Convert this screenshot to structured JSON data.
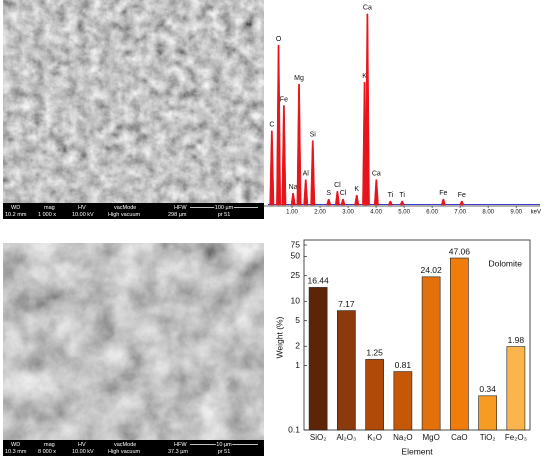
{
  "sem_images": [
    {
      "header": [
        "WD",
        "mag",
        "HV",
        "vacMode",
        "HFW"
      ],
      "info": [
        "10.2 mm",
        "1 000 x",
        "10.00 kV",
        "High vacuum",
        "298 µm"
      ],
      "scale": "100 µm",
      "id": "pr 51"
    },
    {
      "header": [
        "WD",
        "mag",
        "HV",
        "vacMode",
        "HFW"
      ],
      "info": [
        "10.3 mm",
        "8 000 x",
        "10.00 kV",
        "High vacuum",
        "37.3 µm"
      ],
      "scale": "10 µm",
      "id": "pr 51"
    }
  ],
  "chart_data": [
    {
      "type": "spectrum",
      "xlabel": "keV",
      "color": "#e8141c",
      "xlim": [
        0,
        9.85
      ],
      "ylim": [
        0,
        100
      ],
      "xticks": [
        {
          "value": 1,
          "label": "1.00"
        },
        {
          "value": 2,
          "label": "2.00"
        },
        {
          "value": 3,
          "label": "3.00"
        },
        {
          "value": 4,
          "label": "4.00"
        },
        {
          "value": 5,
          "label": "5.00"
        },
        {
          "value": 6,
          "label": "6.00"
        },
        {
          "value": 7,
          "label": "7.00"
        },
        {
          "value": 8,
          "label": "8.00"
        },
        {
          "value": 9,
          "label": "9.00"
        }
      ],
      "peaks": [
        {
          "label": "C",
          "x": 0.28,
          "height": 38
        },
        {
          "label": "O",
          "x": 0.52,
          "height": 82
        },
        {
          "label": "Fe",
          "x": 0.71,
          "height": 51
        },
        {
          "label": "Na",
          "x": 1.04,
          "height": 6
        },
        {
          "label": "Mg",
          "x": 1.25,
          "height": 62
        },
        {
          "label": "Al",
          "x": 1.49,
          "height": 13
        },
        {
          "label": "Si",
          "x": 1.74,
          "height": 33
        },
        {
          "label": "S",
          "x": 2.31,
          "height": 3
        },
        {
          "label": "Cl",
          "x": 2.62,
          "height": 7
        },
        {
          "label": "Cl",
          "x": 2.82,
          "height": 3
        },
        {
          "label": "K",
          "x": 3.31,
          "height": 5
        },
        {
          "label": "K",
          "x": 3.59,
          "height": 63
        },
        {
          "label": "Ca",
          "x": 3.69,
          "height": 98
        },
        {
          "label": "Ca",
          "x": 4.01,
          "height": 13
        },
        {
          "label": "Ti",
          "x": 4.51,
          "height": 2
        },
        {
          "label": "Ti",
          "x": 4.93,
          "height": 2
        },
        {
          "label": "Fe",
          "x": 6.4,
          "height": 3
        },
        {
          "label": "Fe",
          "x": 7.06,
          "height": 2
        }
      ]
    },
    {
      "type": "bar",
      "annotation": "Dolomite",
      "xlabel": "Element",
      "ylabel": "Weight (%)",
      "log_y": true,
      "categories": [
        "SiO₂",
        "Al₂O₃",
        "K₂O",
        "Na₂O",
        "MgO",
        "CaO",
        "TiO₂",
        "Fe₂O₃"
      ],
      "values": [
        16.44,
        7.17,
        1.25,
        0.81,
        24.02,
        47.06,
        0.34,
        1.98
      ],
      "colors": [
        "#5e2407",
        "#8a3a0c",
        "#b04a09",
        "#c45808",
        "#e2700b",
        "#f07c0c",
        "#f79c22",
        "#fbb54c"
      ],
      "ylim": [
        0.1,
        75
      ],
      "yticks": [
        0.1,
        1,
        2,
        5,
        10,
        25,
        50,
        75
      ]
    }
  ]
}
